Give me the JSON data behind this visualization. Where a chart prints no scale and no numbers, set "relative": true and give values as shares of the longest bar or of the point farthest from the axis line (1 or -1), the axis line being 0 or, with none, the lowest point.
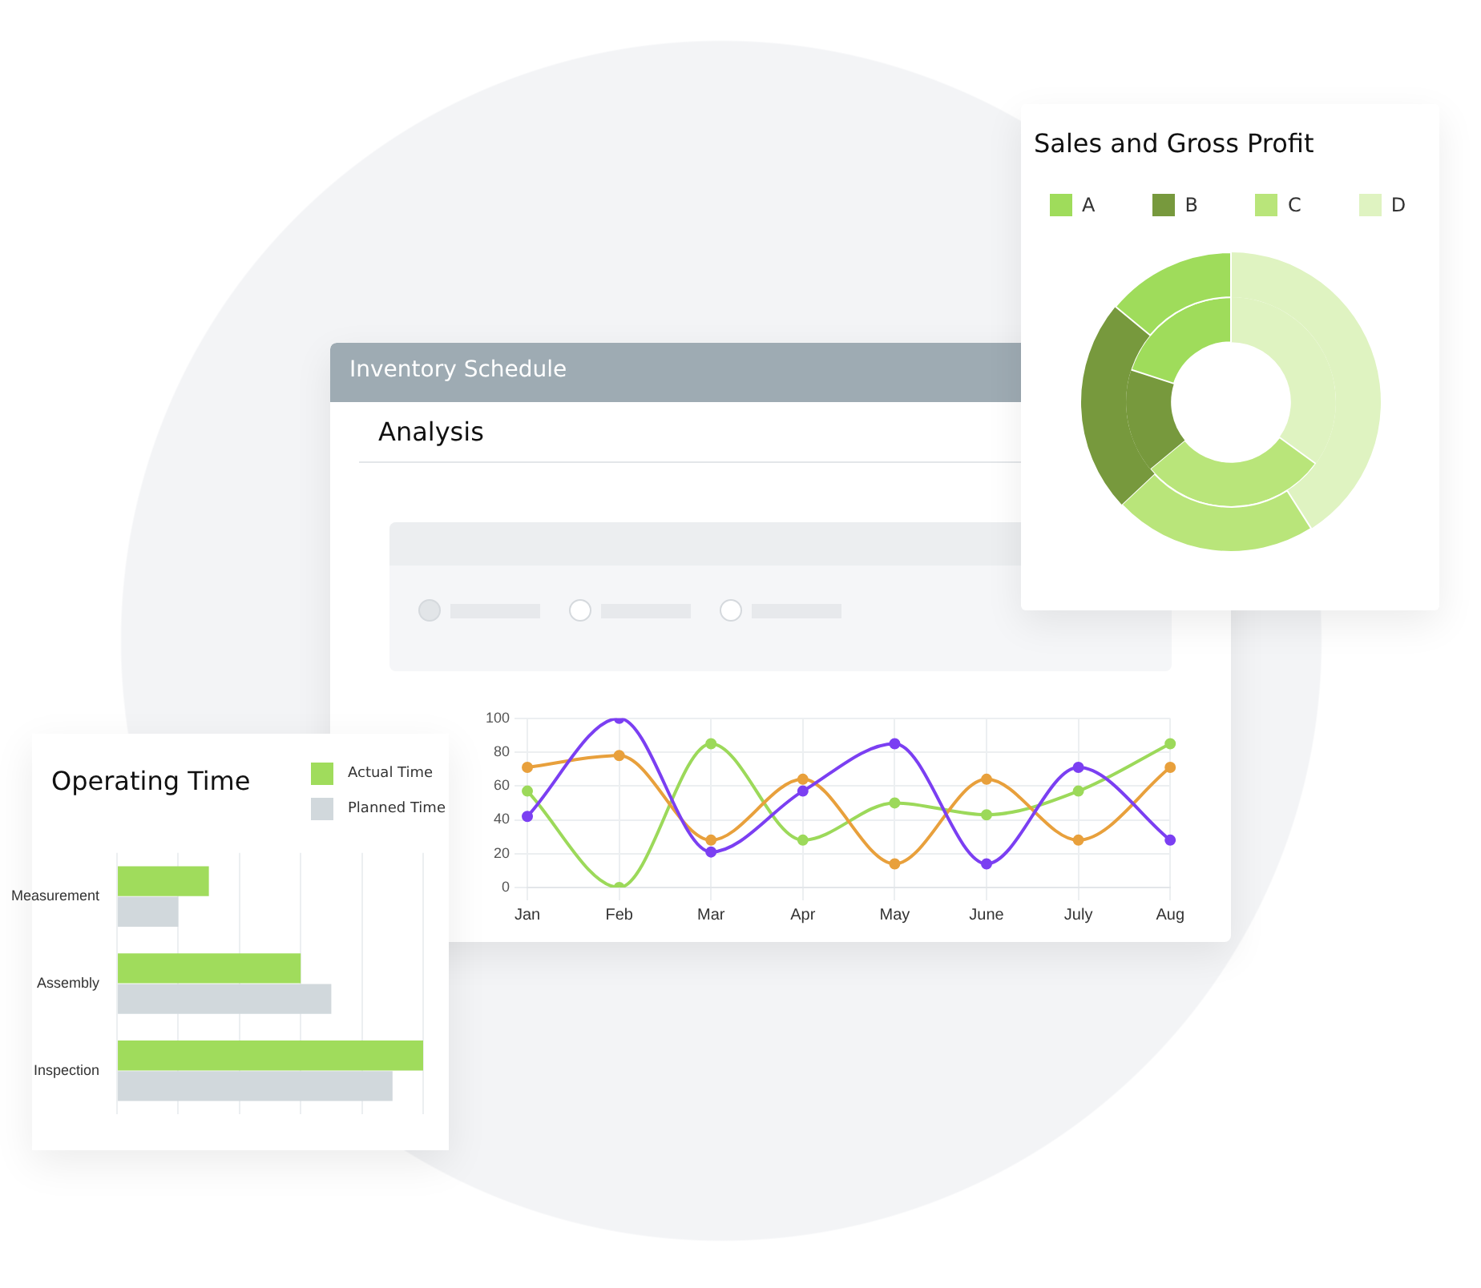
{
  "chart_data": [
    {
      "type": "line",
      "title": "Inventory Schedule",
      "subtitle": "Analysis",
      "categories": [
        "Jan",
        "Feb",
        "Mar",
        "Apr",
        "May",
        "June",
        "July",
        "Aug"
      ],
      "series": [
        {
          "color": "#7b3ff2",
          "values": [
            42,
            100,
            21,
            57,
            85,
            14,
            71,
            28
          ]
        },
        {
          "color": "#e8a03c",
          "values": [
            71,
            78,
            28,
            64,
            14,
            64,
            28,
            71
          ]
        },
        {
          "color": "#9cd95a",
          "values": [
            57,
            0,
            85,
            28,
            50,
            43,
            57,
            85
          ]
        }
      ],
      "ylim": [
        0,
        100
      ],
      "yticks": [
        0,
        20,
        40,
        60,
        80,
        100
      ],
      "grid": true,
      "marker": "circle",
      "legend": false
    },
    {
      "type": "donut",
      "title": "Sales and Gross Profit",
      "categories": [
        "A",
        "B",
        "C",
        "D"
      ],
      "colors": [
        "#9fdc5b",
        "#77993d",
        "#b9e57a",
        "#dff3c1"
      ],
      "series": [
        {
          "values": [
            14,
            23,
            22,
            41
          ]
        },
        {
          "values": [
            20,
            16,
            29,
            35
          ]
        }
      ],
      "legend": "top left"
    },
    {
      "type": "bar",
      "orientation": "horizontal",
      "title": "Operating Time",
      "categories": [
        "Measurement",
        "Assembly",
        "Inspection"
      ],
      "relative": true,
      "series": [
        {
          "name": "Actual Time",
          "color": "#a0dc5c",
          "values": [
            0.3,
            0.6,
            1
          ]
        },
        {
          "name": "Planned Time",
          "color": "#d1d8dc",
          "values": [
            0.2,
            0.7,
            0.9
          ]
        }
      ],
      "grid": "x",
      "legend": "top right"
    }
  ]
}
